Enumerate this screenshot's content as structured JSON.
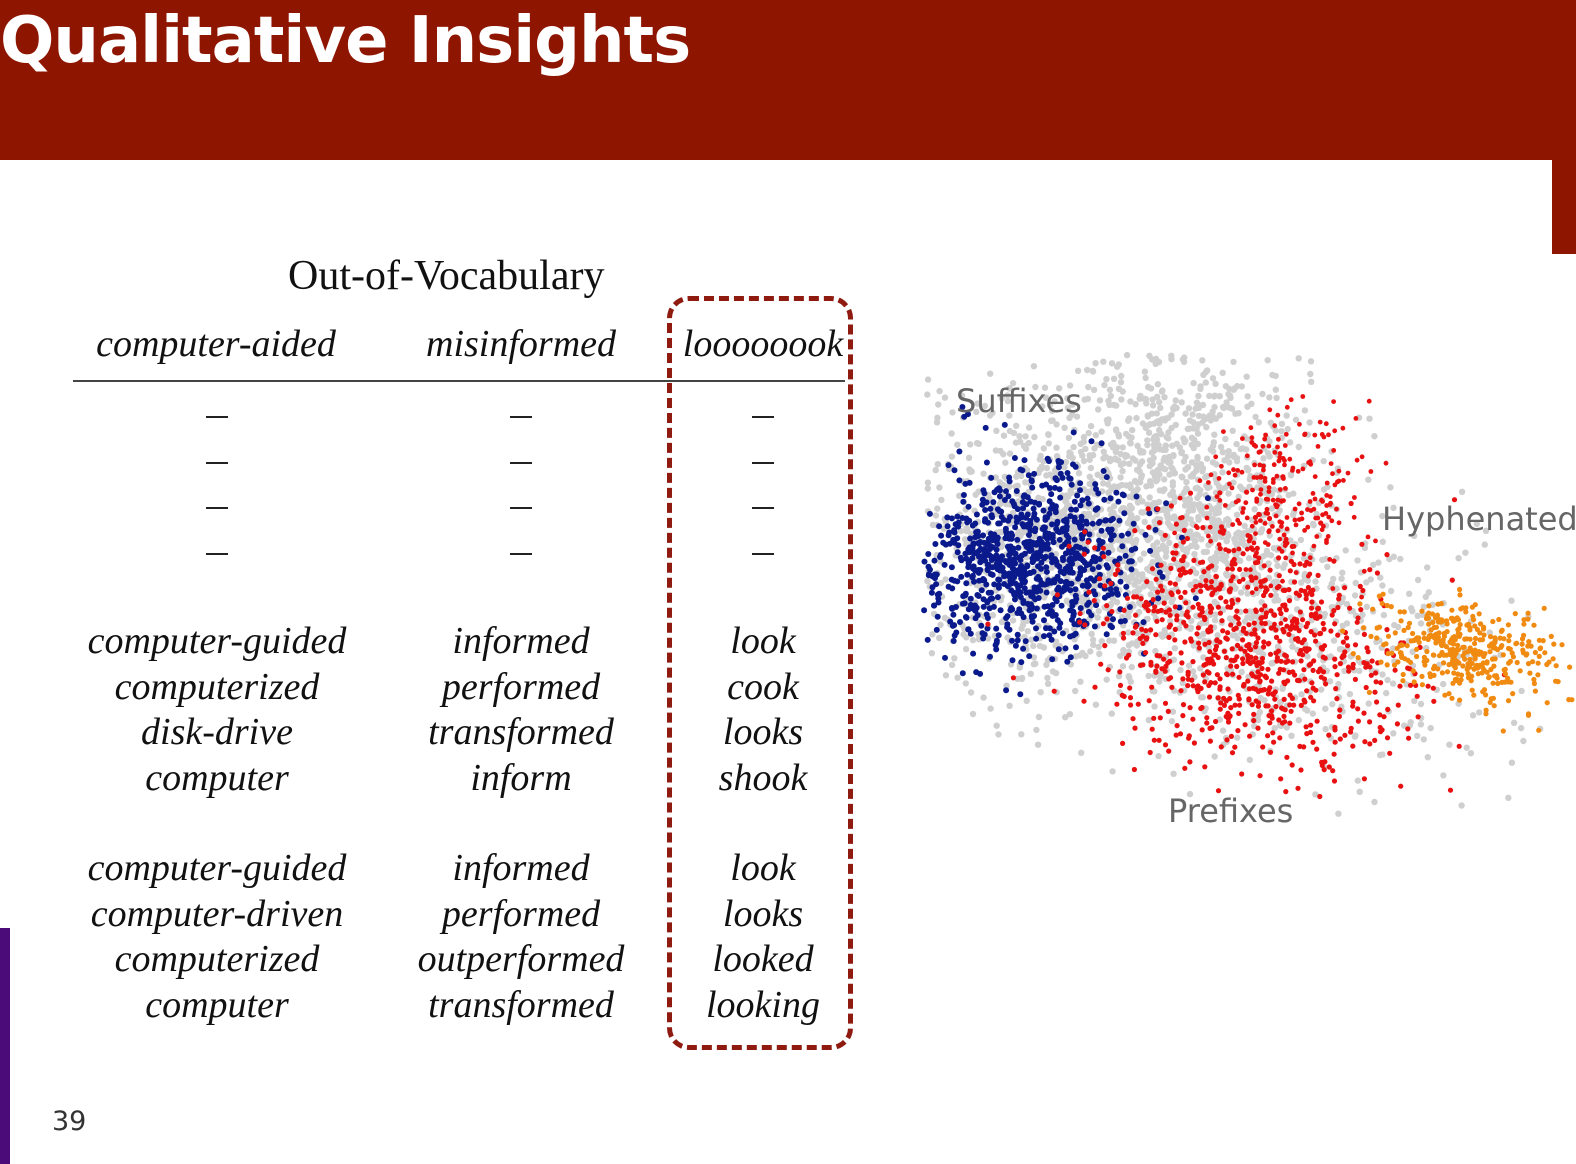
{
  "slide": {
    "title": "Qualitative Insights",
    "page_number": "39"
  },
  "table": {
    "title": "Out-of-Vocabulary",
    "columns": [
      {
        "header": "computer-aided",
        "dashes": 4,
        "group1": [
          "computer-guided",
          "computerized",
          "disk-drive",
          "computer"
        ],
        "group2": [
          "computer-guided",
          "computer-driven",
          "computerized",
          "computer"
        ]
      },
      {
        "header": "misinformed",
        "dashes": 4,
        "group1": [
          "informed",
          "performed",
          "transformed",
          "inform"
        ],
        "group2": [
          "informed",
          "performed",
          "outperformed",
          "transformed"
        ]
      },
      {
        "header": "loooooook",
        "dashes": 4,
        "highlighted": true,
        "group1": [
          "look",
          "cook",
          "looks",
          "shook"
        ],
        "group2": [
          "look",
          "looks",
          "looked",
          "looking"
        ]
      }
    ]
  },
  "scatter": {
    "labels": {
      "suffixes": "Suffixes",
      "hyphenated": "Hyphenated",
      "prefixes": "Prefixes"
    },
    "colors": {
      "background": "#cfcfcf",
      "suffixes": "#0a1a8c",
      "prefixes": "#e81010",
      "hyphenated": "#f08a10",
      "header": "#8e1500",
      "box": "#8e1a10"
    }
  }
}
